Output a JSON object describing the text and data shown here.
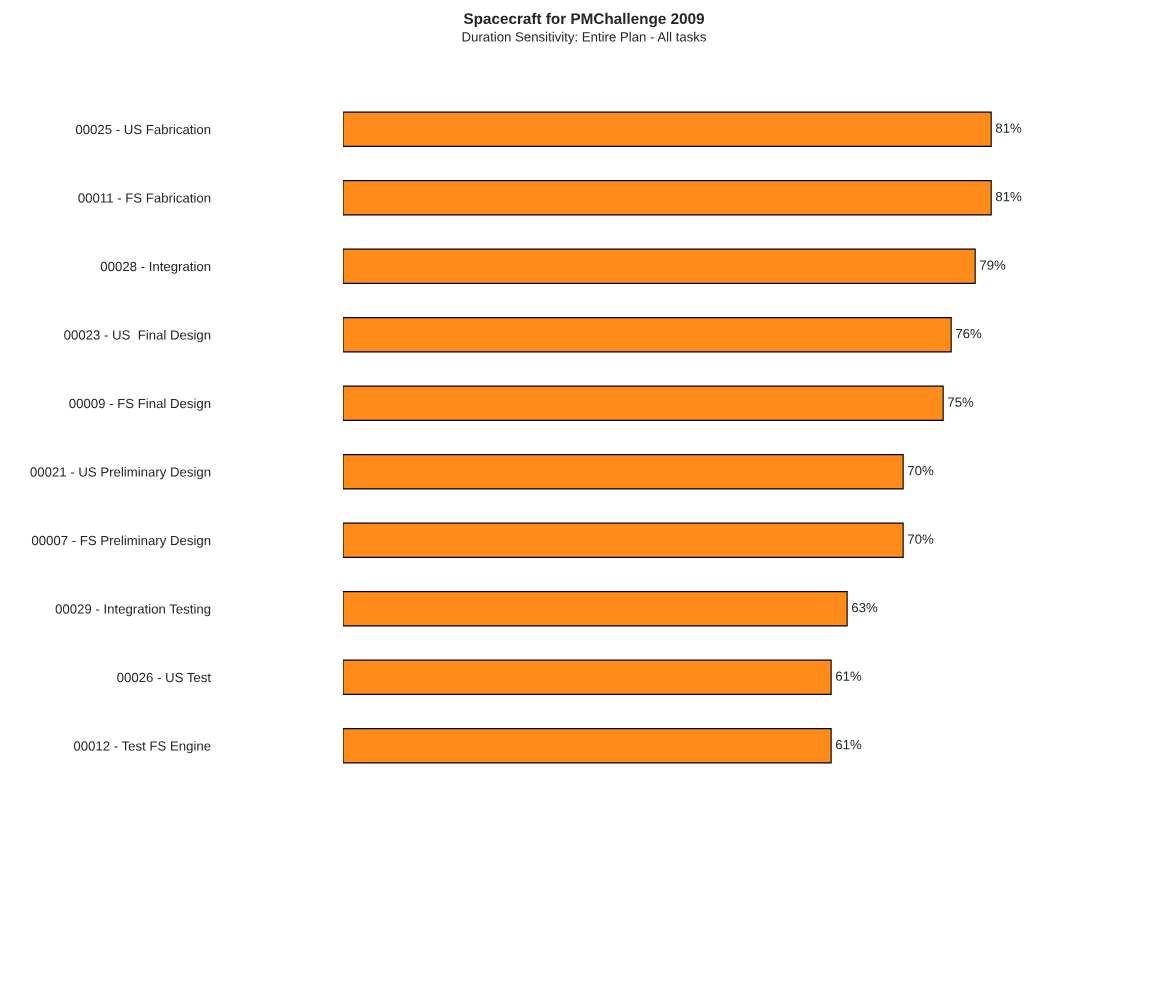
{
  "chart_data": {
    "type": "bar",
    "orientation": "horizontal",
    "title": "Spacecraft for PMChallenge 2009",
    "subtitle": "Duration Sensitivity: Entire Plan - All tasks",
    "categories": [
      "00025 - US Fabrication",
      "00011 - FS Fabrication",
      "00028 - Integration",
      "00023 - US  Final Design",
      "00009 - FS Final Design",
      "00021 - US Preliminary Design",
      "00007 - FS Preliminary Design",
      "00029 - Integration Testing",
      "00026 - US Test",
      "00012 - Test FS Engine"
    ],
    "values": [
      81,
      81,
      79,
      76,
      75,
      70,
      70,
      63,
      61,
      61
    ],
    "value_labels": [
      "81%",
      "81%",
      "79%",
      "76%",
      "75%",
      "70%",
      "70%",
      "63%",
      "61%",
      "61%"
    ],
    "color": "#ff8c1a",
    "grid": false,
    "legend": false,
    "tick_labels": "y"
  }
}
